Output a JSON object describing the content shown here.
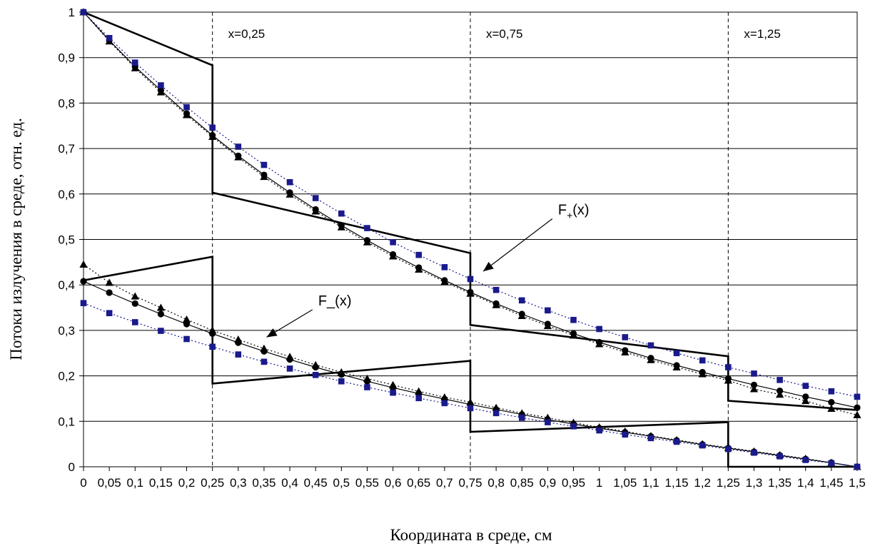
{
  "chart_data": {
    "type": "line",
    "title": "",
    "xlabel": "Координата в среде, см",
    "ylabel": "Потоки излучения в среде, отн. ед.",
    "xlim": [
      0,
      1.5
    ],
    "ylim": [
      0,
      1
    ],
    "x_ticks": [
      "0",
      "0,05",
      "0,1",
      "0,15",
      "0,2",
      "0,25",
      "0,3",
      "0,35",
      "0,4",
      "0,45",
      "0,5",
      "0,55",
      "0,6",
      "0,65",
      "0,7",
      "0,75",
      "0,8",
      "0,85",
      "0,9",
      "0,95",
      "1",
      "1,05",
      "1,1",
      "1,15",
      "1,2",
      "1,25",
      "1,3",
      "1,35",
      "1,4",
      "1,45",
      "1,5"
    ],
    "y_ticks": [
      "0",
      "0,1",
      "0,2",
      "0,3",
      "0,4",
      "0,5",
      "0,6",
      "0,7",
      "0,8",
      "0,9",
      "1"
    ],
    "grid": "horizontal",
    "boundaries": [
      {
        "x": 0.25,
        "label": "x=0,25"
      },
      {
        "x": 0.75,
        "label": "x=0,75"
      },
      {
        "x": 1.25,
        "label": "x=1,25"
      }
    ],
    "annotations": [
      {
        "text": "F+(x)",
        "main": "F",
        "sub": "+",
        "rest": "(x)",
        "x": 0.92,
        "y": 0.555,
        "arrow_to": [
          0.775,
          0.43
        ]
      },
      {
        "text": "F_(x)",
        "main": "F_(x)",
        "sub": "",
        "rest": "",
        "x": 0.455,
        "y": 0.355,
        "arrow_to": [
          0.355,
          0.285
        ]
      }
    ],
    "series": [
      {
        "style": "bold-step",
        "points": [
          [
            0,
            1
          ],
          [
            0.25,
            0.883
          ],
          [
            0.25,
            0.603
          ],
          [
            0.75,
            0.47
          ],
          [
            0.75,
            0.312
          ],
          [
            1.25,
            0.243
          ],
          [
            1.25,
            0.145
          ],
          [
            1.5,
            0.125
          ]
        ]
      },
      {
        "style": "bold-step",
        "points": [
          [
            0,
            0.41
          ],
          [
            0.25,
            0.462
          ],
          [
            0.25,
            0.183
          ],
          [
            0.75,
            0.233
          ],
          [
            0.75,
            0.077
          ],
          [
            1.25,
            0.098
          ],
          [
            1.25,
            0
          ],
          [
            1.5,
            0
          ]
        ]
      },
      {
        "style": "circle-solid",
        "x": [
          0,
          0.05,
          0.1,
          0.15,
          0.2,
          0.25,
          0.3,
          0.35,
          0.4,
          0.45,
          0.5,
          0.55,
          0.6,
          0.65,
          0.7,
          0.75,
          0.8,
          0.85,
          0.9,
          0.95,
          1,
          1.05,
          1.1,
          1.15,
          1.2,
          1.25,
          1.3,
          1.35,
          1.4,
          1.45,
          1.5
        ],
        "values": [
          1,
          0.938,
          0.88,
          0.828,
          0.777,
          0.729,
          0.684,
          0.642,
          0.603,
          0.566,
          0.531,
          0.498,
          0.467,
          0.438,
          0.41,
          0.384,
          0.359,
          0.336,
          0.314,
          0.293,
          0.274,
          0.256,
          0.239,
          0.223,
          0.208,
          0.194,
          0.18,
          0.167,
          0.154,
          0.142,
          0.13
        ]
      },
      {
        "style": "triangle-dotted",
        "x": [
          0,
          0.05,
          0.1,
          0.15,
          0.2,
          0.25,
          0.3,
          0.35,
          0.4,
          0.45,
          0.5,
          0.55,
          0.6,
          0.65,
          0.7,
          0.75,
          0.8,
          0.85,
          0.9,
          0.95,
          1,
          1.05,
          1.1,
          1.15,
          1.2,
          1.25,
          1.3,
          1.35,
          1.4,
          1.45,
          1.5
        ],
        "values": [
          1,
          0.936,
          0.877,
          0.824,
          0.774,
          0.726,
          0.681,
          0.638,
          0.599,
          0.562,
          0.527,
          0.494,
          0.463,
          0.434,
          0.407,
          0.381,
          0.356,
          0.332,
          0.31,
          0.289,
          0.27,
          0.252,
          0.235,
          0.219,
          0.204,
          0.19,
          0.171,
          0.159,
          0.145,
          0.128,
          0.114
        ]
      },
      {
        "style": "square-dotted-blue",
        "x": [
          0,
          0.05,
          0.1,
          0.15,
          0.2,
          0.25,
          0.3,
          0.35,
          0.4,
          0.45,
          0.5,
          0.55,
          0.6,
          0.65,
          0.7,
          0.75,
          0.8,
          0.85,
          0.9,
          0.95,
          1,
          1.05,
          1.1,
          1.15,
          1.2,
          1.25,
          1.3,
          1.35,
          1.4,
          1.45,
          1.5
        ],
        "values": [
          1,
          0.943,
          0.889,
          0.839,
          0.791,
          0.746,
          0.704,
          0.664,
          0.626,
          0.591,
          0.557,
          0.525,
          0.494,
          0.466,
          0.439,
          0.413,
          0.389,
          0.366,
          0.344,
          0.323,
          0.303,
          0.285,
          0.267,
          0.25,
          0.234,
          0.219,
          0.205,
          0.191,
          0.178,
          0.166,
          0.154
        ]
      },
      {
        "style": "circle-solid",
        "x": [
          0,
          0.05,
          0.1,
          0.15,
          0.2,
          0.25,
          0.3,
          0.35,
          0.4,
          0.45,
          0.5,
          0.55,
          0.6,
          0.65,
          0.7,
          0.75,
          0.8,
          0.85,
          0.9,
          0.95,
          1,
          1.05,
          1.1,
          1.15,
          1.2,
          1.25,
          1.3,
          1.35,
          1.4,
          1.45,
          1.5
        ],
        "values": [
          0.408,
          0.383,
          0.359,
          0.336,
          0.314,
          0.293,
          0.273,
          0.254,
          0.236,
          0.219,
          0.203,
          0.188,
          0.174,
          0.161,
          0.149,
          0.137,
          0.126,
          0.115,
          0.104,
          0.094,
          0.085,
          0.076,
          0.067,
          0.058,
          0.049,
          0.041,
          0.033,
          0.025,
          0.017,
          0.009,
          0
        ]
      },
      {
        "style": "triangle-dotted",
        "x": [
          0,
          0.05,
          0.1,
          0.15,
          0.2,
          0.25,
          0.3,
          0.35,
          0.4,
          0.45,
          0.5,
          0.55,
          0.6,
          0.65,
          0.7,
          0.75,
          0.8,
          0.85,
          0.9,
          0.95,
          1,
          1.05,
          1.1,
          1.15,
          1.2,
          1.25,
          1.3,
          1.35,
          1.4,
          1.45,
          1.5
        ],
        "values": [
          0.445,
          0.405,
          0.375,
          0.35,
          0.324,
          0.3,
          0.28,
          0.26,
          0.242,
          0.224,
          0.208,
          0.194,
          0.18,
          0.166,
          0.153,
          0.142,
          0.13,
          0.118,
          0.108,
          0.097,
          0.087,
          0.078,
          0.068,
          0.059,
          0.05,
          0.042,
          0.034,
          0.026,
          0.018,
          0.009,
          0
        ]
      },
      {
        "style": "square-dotted-blue",
        "x": [
          0,
          0.05,
          0.1,
          0.15,
          0.2,
          0.25,
          0.3,
          0.35,
          0.4,
          0.45,
          0.5,
          0.55,
          0.6,
          0.65,
          0.7,
          0.75,
          0.8,
          0.85,
          0.9,
          0.95,
          1,
          1.05,
          1.1,
          1.15,
          1.2,
          1.25,
          1.3,
          1.35,
          1.4,
          1.45,
          1.5
        ],
        "values": [
          0.36,
          0.338,
          0.318,
          0.299,
          0.281,
          0.264,
          0.247,
          0.231,
          0.216,
          0.202,
          0.188,
          0.175,
          0.163,
          0.151,
          0.14,
          0.129,
          0.118,
          0.108,
          0.098,
          0.089,
          0.08,
          0.071,
          0.063,
          0.055,
          0.047,
          0.039,
          0.031,
          0.023,
          0.015,
          0.008,
          0
        ]
      }
    ],
    "colors": {
      "axis": "#000000",
      "grid": "#000000",
      "solid_markers": "#000000",
      "blue_markers": "#1a1a8c"
    }
  }
}
